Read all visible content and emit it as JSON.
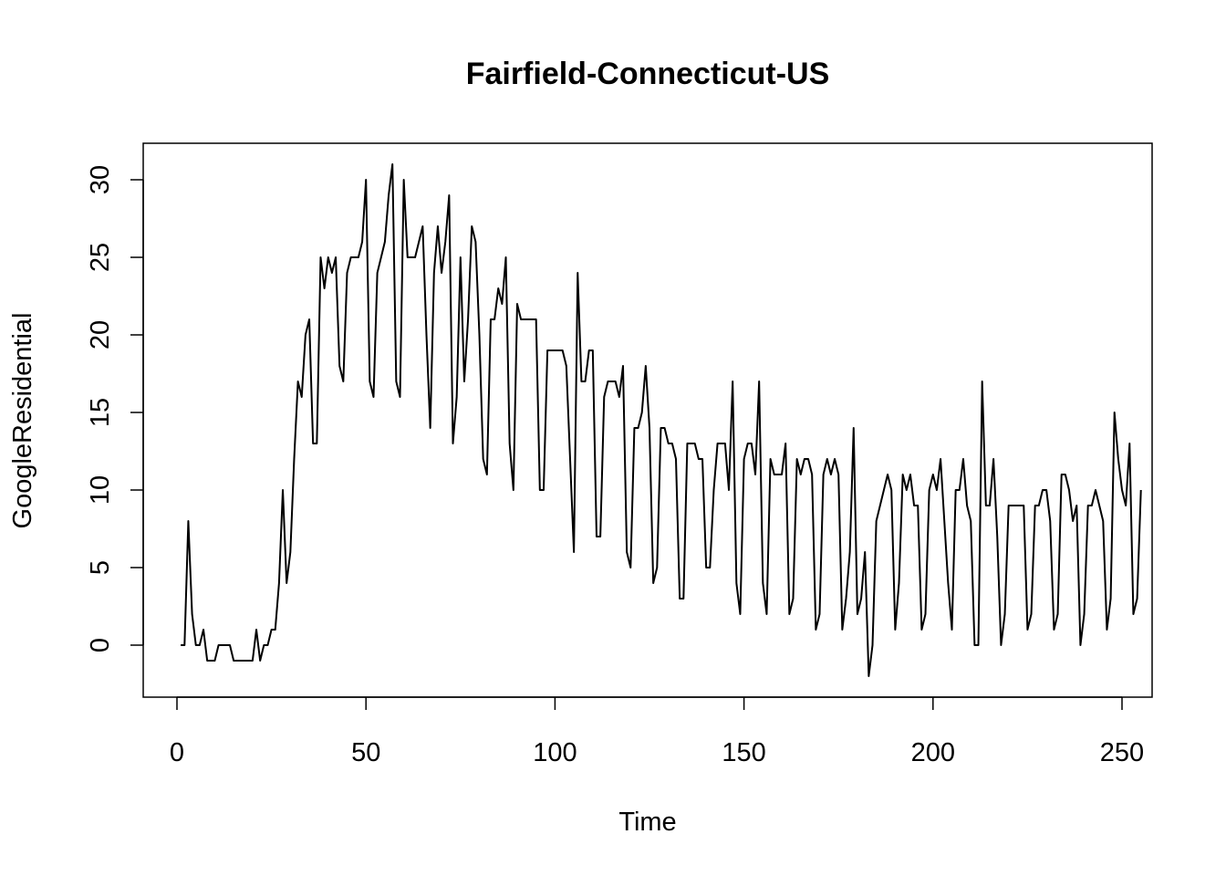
{
  "chart_data": {
    "type": "line",
    "title": "Fairfield-Connecticut-US",
    "xlabel": "Time",
    "ylabel": "GoogleResidential",
    "xlim": [
      0,
      250
    ],
    "ylim": [
      -2,
      31
    ],
    "xticks": [
      0,
      50,
      100,
      150,
      200,
      250
    ],
    "yticks": [
      0,
      5,
      10,
      15,
      20,
      25,
      30
    ],
    "grid": false,
    "series": [
      {
        "color": "#000000",
        "x_start": 1,
        "values": [
          0,
          0,
          8,
          2,
          0,
          0,
          1,
          -1,
          -1,
          -1,
          0,
          0,
          0,
          0,
          -1,
          -1,
          -1,
          -1,
          -1,
          -1,
          1,
          -1,
          0,
          0,
          1,
          1,
          4,
          10,
          4,
          6,
          12,
          17,
          16,
          20,
          21,
          13,
          13,
          25,
          23,
          25,
          24,
          25,
          18,
          17,
          24,
          25,
          25,
          25,
          26,
          30,
          17,
          16,
          24,
          25,
          26,
          29,
          31,
          17,
          16,
          30,
          25,
          25,
          25,
          26,
          27,
          20,
          14,
          24,
          27,
          24,
          26,
          29,
          13,
          16,
          25,
          17,
          21,
          27,
          26,
          20,
          12,
          11,
          21,
          21,
          23,
          22,
          25,
          13,
          10,
          22,
          21,
          21,
          21,
          21,
          21,
          10,
          10,
          19,
          19,
          19,
          19,
          19,
          18,
          12,
          6,
          24,
          17,
          17,
          19,
          19,
          7,
          7,
          16,
          17,
          17,
          17,
          16,
          18,
          6,
          5,
          14,
          14,
          15,
          18,
          14,
          4,
          5,
          14,
          14,
          13,
          13,
          12,
          3,
          3,
          13,
          13,
          13,
          12,
          12,
          5,
          5,
          10,
          13,
          13,
          13,
          10,
          17,
          4,
          2,
          12,
          13,
          13,
          11,
          17,
          4,
          2,
          12,
          11,
          11,
          11,
          13,
          2,
          3,
          12,
          11,
          12,
          12,
          11,
          1,
          2,
          11,
          12,
          11,
          12,
          11,
          1,
          3,
          6,
          14,
          2,
          3,
          6,
          -2,
          0,
          8,
          9,
          10,
          11,
          10,
          1,
          4,
          11,
          10,
          11,
          9,
          9,
          1,
          2,
          10,
          11,
          10,
          12,
          8,
          4,
          1,
          10,
          10,
          12,
          9,
          8,
          0,
          0,
          17,
          9,
          9,
          12,
          7,
          0,
          2,
          9,
          9,
          9,
          9,
          9,
          1,
          2,
          9,
          9,
          10,
          10,
          8,
          1,
          2,
          11,
          11,
          10,
          8,
          9,
          0,
          2,
          9,
          9,
          10,
          9,
          8,
          1,
          3,
          15,
          12,
          10,
          9,
          13,
          2,
          3,
          10
        ]
      }
    ]
  }
}
